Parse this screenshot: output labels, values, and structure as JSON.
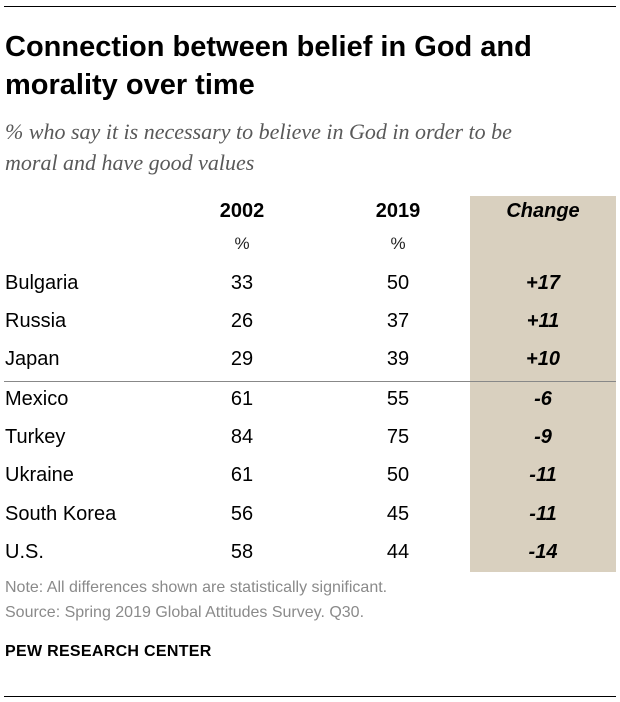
{
  "title_line1": "Connection between belief in God and",
  "title_line2": "morality over time",
  "subtitle_line1": "% who say it is necessary to believe in God in order to be",
  "subtitle_line2": "moral and have good values",
  "chart_data": {
    "type": "table",
    "columns": [
      "2002",
      "2019",
      "Change"
    ],
    "units": [
      "%",
      "%"
    ],
    "rows": [
      {
        "country": "Bulgaria",
        "v2002": "33",
        "v2019": "50",
        "change": "+17"
      },
      {
        "country": "Russia",
        "v2002": "26",
        "v2019": "37",
        "change": "+11"
      },
      {
        "country": "Japan",
        "v2002": "29",
        "v2019": "39",
        "change": "+10"
      },
      {
        "country": "Mexico",
        "v2002": "61",
        "v2019": "55",
        "change": "-6"
      },
      {
        "country": "Turkey",
        "v2002": "84",
        "v2019": "75",
        "change": "-9"
      },
      {
        "country": "Ukraine",
        "v2002": "61",
        "v2019": "50",
        "change": "-11"
      },
      {
        "country": "South Korea",
        "v2002": "56",
        "v2019": "45",
        "change": "-11"
      },
      {
        "country": "U.S.",
        "v2002": "58",
        "v2019": "44",
        "change": "-14"
      }
    ]
  },
  "note": "Note: All differences shown are statistically significant.",
  "source": "Source: Spring 2019 Global Attitudes Survey. Q30.",
  "brand": "PEW RESEARCH CENTER",
  "colors": {
    "change_column_bg": "#d9d0bf",
    "subtitle": "#595959",
    "note": "#8a8a8a"
  }
}
